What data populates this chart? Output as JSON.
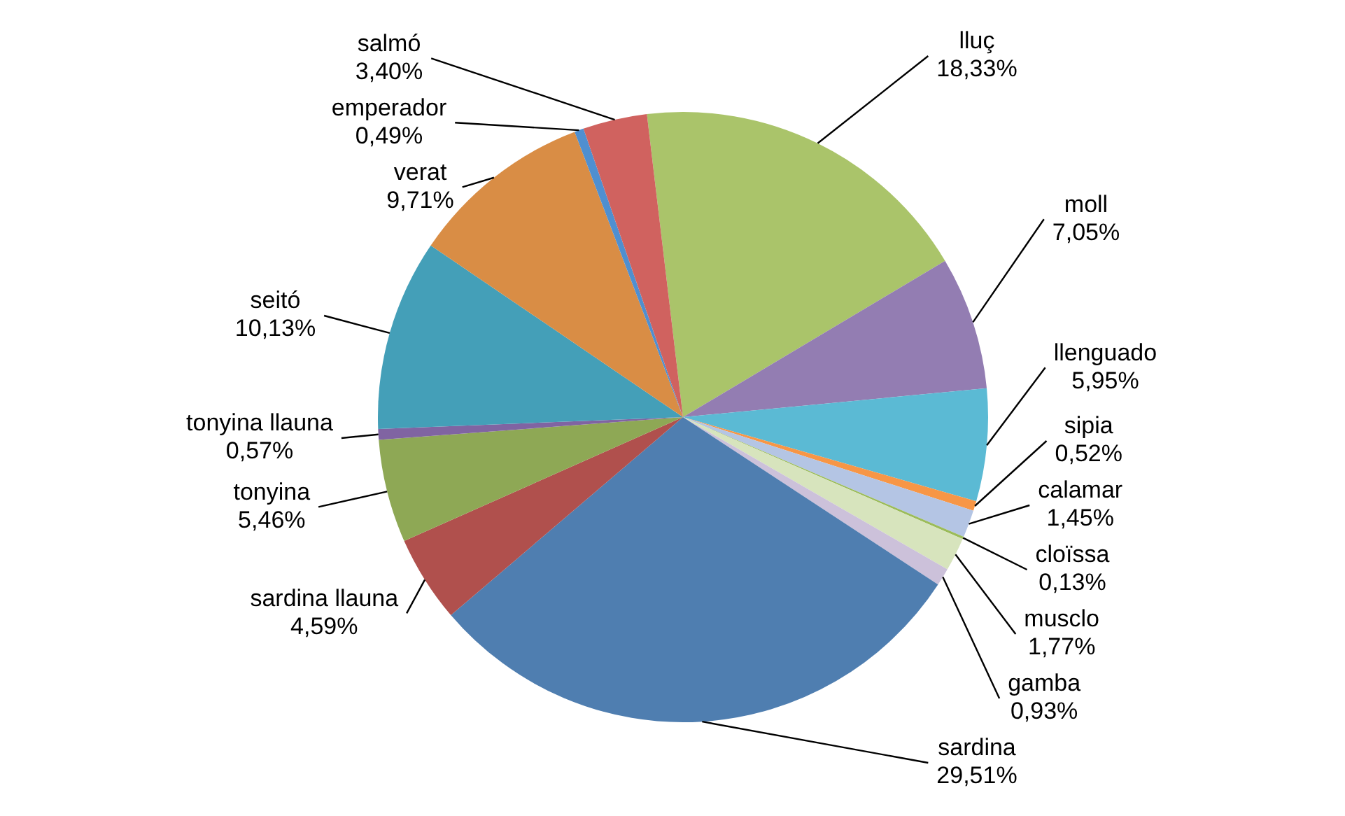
{
  "chart_data": {
    "type": "pie",
    "categories": [
      "lluç",
      "moll",
      "llenguado",
      "sipia",
      "calamar",
      "cloïssa",
      "musclo",
      "gamba",
      "sardina",
      "sardina llauna",
      "tonyina",
      "tonyina llauna",
      "seitó",
      "verat",
      "emperador",
      "salmó"
    ],
    "values": [
      18.33,
      7.05,
      5.95,
      0.52,
      1.45,
      0.13,
      1.77,
      0.93,
      29.51,
      4.59,
      5.46,
      0.57,
      10.13,
      9.71,
      0.49,
      3.4
    ],
    "value_labels": [
      "18,33%",
      "7,05%",
      "5,95%",
      "0,52%",
      "1,45%",
      "0,13%",
      "1,77%",
      "0,93%",
      "29,51%",
      "4,59%",
      "5,46%",
      "0,57%",
      "10,13%",
      "9,71%",
      "0,49%",
      "3,40%"
    ],
    "colors": [
      "#aac46a",
      "#937db2",
      "#5bbad4",
      "#f79646",
      "#b4c5e4",
      "#9bbb59",
      "#d7e4bd",
      "#ccc1da",
      "#4f7eb0",
      "#b0504d",
      "#8ea855",
      "#8064a2",
      "#449fb8",
      "#d98d45",
      "#4f8fd0",
      "#d0625f"
    ],
    "legend": false
  }
}
